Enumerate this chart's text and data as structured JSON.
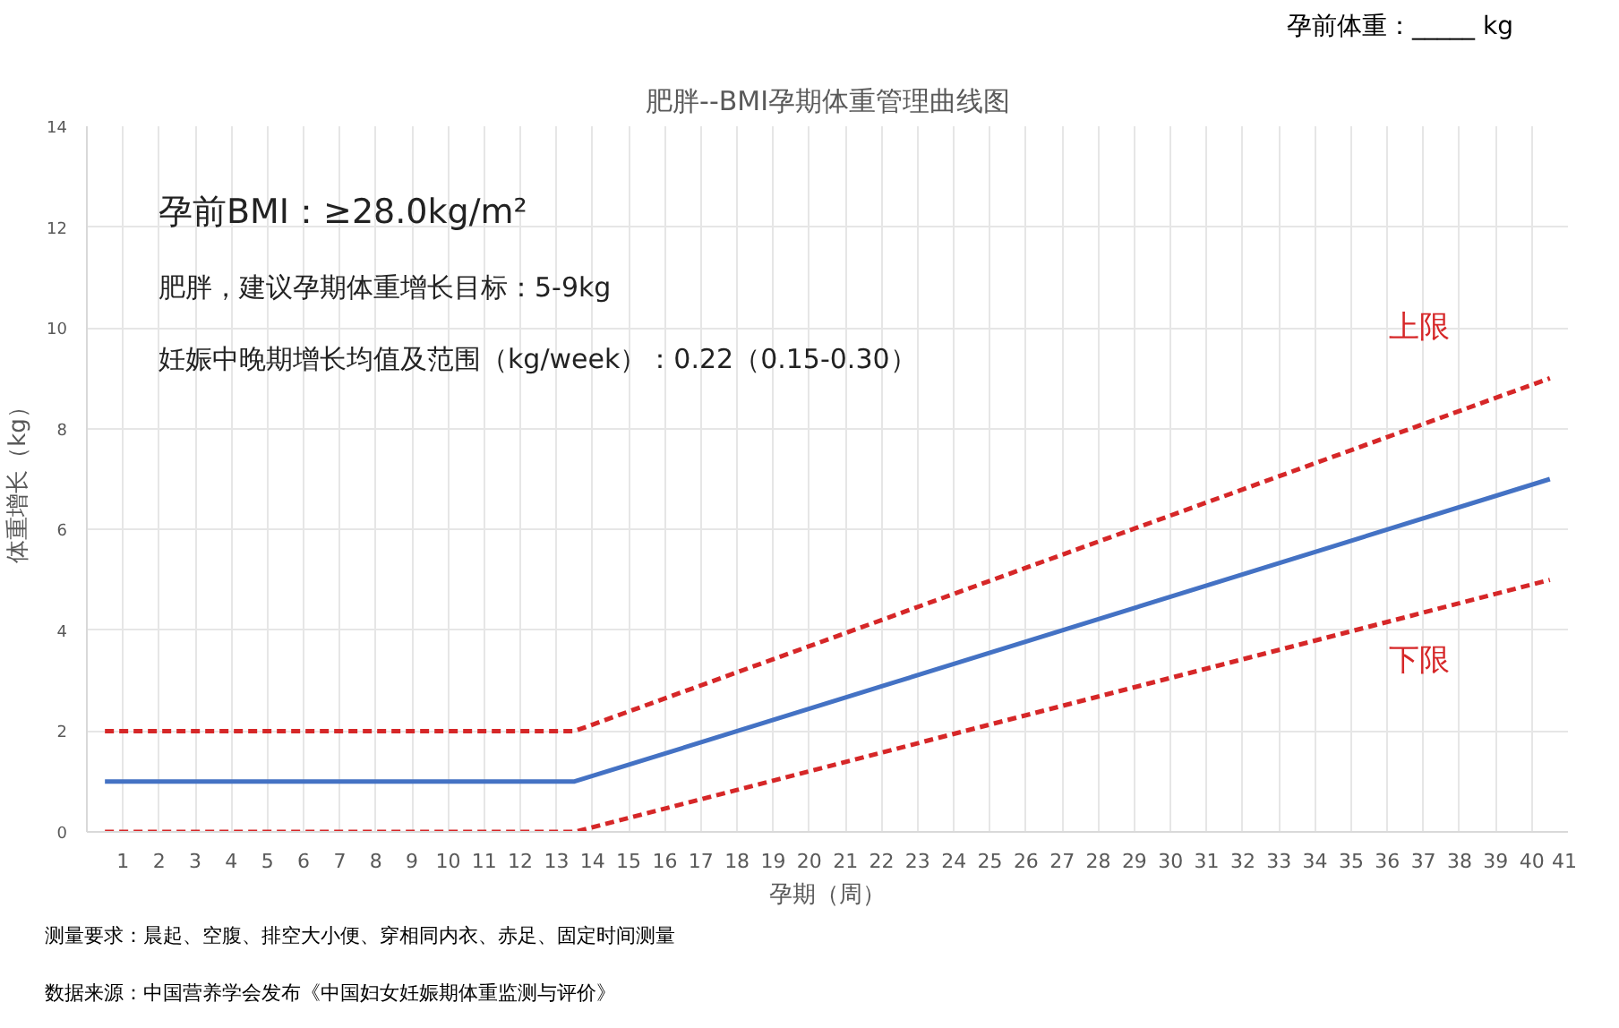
{
  "chart_data": {
    "type": "line",
    "title": "肥胖--BMI孕期体重管理曲线图",
    "xlabel": "孕期（周）",
    "ylabel": "体重增长（kg）",
    "x": [
      0.5,
      13.5,
      40.5
    ],
    "series": [
      {
        "name": "上限",
        "color": "#d62728",
        "values": [
          2,
          2,
          9
        ],
        "line_style": "dashed"
      },
      {
        "color": "#4472c4",
        "values": [
          1,
          1,
          7
        ],
        "line_style": "solid"
      },
      {
        "name": "下限",
        "color": "#d62728",
        "values": [
          0,
          0,
          5
        ],
        "line_style": "dashed"
      }
    ],
    "xlim": [
      0,
      41
    ],
    "xticks": [
      1,
      2,
      3,
      4,
      5,
      6,
      7,
      8,
      9,
      10,
      11,
      12,
      13,
      14,
      15,
      16,
      17,
      18,
      19,
      20,
      21,
      22,
      23,
      24,
      25,
      26,
      27,
      28,
      29,
      30,
      31,
      32,
      33,
      34,
      35,
      36,
      37,
      38,
      39,
      40,
      41
    ],
    "ylim": [
      0,
      14
    ],
    "yticks": [
      0,
      2,
      4,
      6,
      8,
      10,
      12,
      14
    ],
    "grid": true,
    "marker": "none",
    "legend": false,
    "annotations": [
      "孕前体重：_____ kg",
      "孕前BMI：≥28.0kg/m²",
      "肥胖，建议孕期体重增长目标：5-9kg",
      "妊娠中晚期增长均值及范围（kg/week）：0.22（0.15-0.30）",
      "测量要求：晨起、空腹、排空大小便、穿相同内衣、赤足、固定时间测量",
      "数据来源：中国营养学会发布《中国妇女妊娠期体重监测与评价》"
    ]
  }
}
